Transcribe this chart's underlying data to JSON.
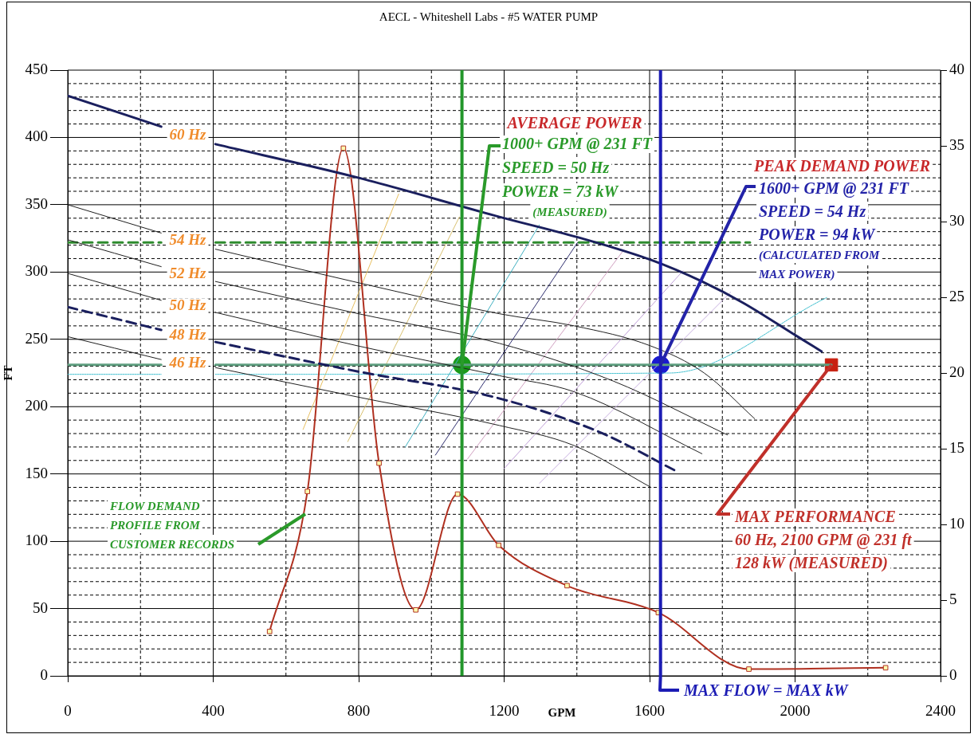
{
  "chart_data": {
    "type": "line",
    "title": "AECL - Whiteshell Labs - #5 WATER PUMP",
    "xlabel": "GPM",
    "ylabel": "FT",
    "xlim": [
      0,
      2400
    ],
    "xticks": [
      0,
      {
        "value": 200,
        "label": null
      },
      400,
      {
        "value": 600,
        "label": null
      },
      800,
      {
        "value": 1000,
        "label": null
      },
      1200,
      {
        "value": 1400,
        "label": null
      },
      1600,
      {
        "value": 1800,
        "label": null
      },
      2000,
      {
        "value": 2200,
        "label": null
      },
      2400
    ],
    "ylim": [
      0,
      450
    ],
    "yticks": [
      0,
      {
        "value": 10,
        "label": null
      },
      {
        "value": 20,
        "label": null
      },
      {
        "value": 30,
        "label": null
      },
      {
        "value": 40,
        "label": null
      },
      50,
      {
        "value": 60,
        "label": null
      },
      {
        "value": 70,
        "label": null
      },
      {
        "value": 80,
        "label": null
      },
      {
        "value": 90,
        "label": null
      },
      100,
      {
        "value": 110,
        "label": null
      },
      {
        "value": 120,
        "label": null
      },
      {
        "value": 130,
        "label": null
      },
      {
        "value": 140,
        "label": null
      },
      150,
      {
        "value": 160,
        "label": null
      },
      {
        "value": 170,
        "label": null
      },
      {
        "value": 180,
        "label": null
      },
      {
        "value": 190,
        "label": null
      },
      200,
      {
        "value": 210,
        "label": null
      },
      {
        "value": 220,
        "label": null
      },
      {
        "value": 230,
        "label": null
      },
      {
        "value": 240,
        "label": null
      },
      250,
      {
        "value": 260,
        "label": null
      },
      {
        "value": 270,
        "label": null
      },
      {
        "value": 280,
        "label": null
      },
      {
        "value": 290,
        "label": null
      },
      300,
      {
        "value": 310,
        "label": null
      },
      {
        "value": 320,
        "label": null
      },
      {
        "value": 330,
        "label": null
      },
      {
        "value": 340,
        "label": null
      },
      350,
      {
        "value": 360,
        "label": null
      },
      {
        "value": 370,
        "label": null
      },
      {
        "value": 380,
        "label": null
      },
      {
        "value": 390,
        "label": null
      },
      400,
      {
        "value": 410,
        "label": null
      },
      {
        "value": 420,
        "label": null
      },
      {
        "value": 430,
        "label": null
      },
      {
        "value": 440,
        "label": null
      },
      450
    ],
    "y2lim": [
      0,
      40
    ],
    "y2ticks": [
      0,
      5,
      10,
      15,
      20,
      25,
      30,
      35,
      40
    ],
    "grid": true,
    "legend": false,
    "series": [
      {
        "name": "60 Hz",
        "color": "#1a1f5e",
        "x": [
          0,
          257,
          330,
          406,
          800,
          1187,
          1400,
          1604,
          1744,
          1858,
          2007,
          2073
        ],
        "values": [
          431,
          408,
          null,
          395,
          370,
          341,
          326,
          309,
          293,
          277,
          252,
          241
        ]
      },
      {
        "name": "54 Hz",
        "color": "#202020",
        "x": [
          0,
          257,
          330,
          406,
          800,
          1187,
          1393,
          1604,
          1750,
          1889
        ],
        "values": [
          350,
          329,
          null,
          317,
          292,
          269,
          260,
          245,
          225,
          191
        ]
      },
      {
        "name": "52 Hz",
        "color": "#202020",
        "x": [
          0,
          257,
          330,
          406,
          800,
          1187,
          1500,
          1814
        ],
        "values": [
          324,
          304,
          null,
          293,
          269,
          247,
          219,
          179
        ]
      },
      {
        "name": "50 Hz",
        "color": "#202020",
        "x": [
          0,
          257,
          330,
          406,
          800,
          1187,
          1393,
          1744
        ],
        "values": [
          299,
          279,
          null,
          270,
          245,
          223,
          211,
          165
        ]
      },
      {
        "name": "48 Hz",
        "color": "#1a1f5e",
        "line_style": "dashed",
        "x": [
          0,
          257,
          330,
          406,
          800,
          1174,
          1463,
          1674
        ],
        "values": [
          274,
          257,
          null,
          248,
          226,
          207,
          181,
          152
        ]
      },
      {
        "name": "46 Hz",
        "color": "#202020",
        "x": [
          0,
          257,
          330,
          406,
          800,
          1187,
          1393,
          1604
        ],
        "values": [
          252,
          235,
          null,
          229,
          207,
          186,
          171,
          140
        ]
      },
      {
        "color": "#b03020",
        "marker": "square",
        "x": [
          555,
          659,
          758,
          856,
          957,
          1072,
          1185,
          1373,
          1624,
          1873,
          2249
        ],
        "values": [
          33,
          137,
          392,
          158,
          49,
          135,
          97,
          67,
          47,
          5,
          6
        ]
      },
      {
        "color": "#5f9f80",
        "x": [
          0,
          257,
          330,
          406,
          2100
        ],
        "values": [
          231,
          231,
          null,
          231,
          231
        ]
      },
      {
        "color": "#2e8b2e",
        "line_style": "dashed",
        "x": [
          0,
          257,
          330,
          406,
          1876
        ],
        "values": [
          322,
          322,
          null,
          322,
          322
        ]
      },
      {
        "color": "#40c0d0",
        "line_style": "dotted",
        "x": [
          0,
          257,
          330,
          406,
          1656,
          2087
        ],
        "values": [
          224,
          224,
          null,
          224,
          225,
          281
        ]
      },
      {
        "color": "#e8c060",
        "x": [
          647,
          910
        ],
        "values": [
          183,
          358
        ]
      },
      {
        "color": "#d8c070",
        "x": [
          770,
          1077
        ],
        "values": [
          174,
          341
        ]
      },
      {
        "color": "#40b0c0",
        "x": [
          928,
          1297
        ],
        "values": [
          170,
          335
        ]
      },
      {
        "color": "#303070",
        "x": [
          1011,
          1402
        ],
        "values": [
          164,
          322
        ]
      },
      {
        "color": "#d0a0c0",
        "x": [
          1099,
          1525
        ],
        "values": [
          161,
          315
        ]
      },
      {
        "color": "#c0a0d8",
        "x": [
          1200,
          1692
        ],
        "values": [
          154,
          301
        ]
      },
      {
        "color": "#c8b0e0",
        "x": [
          1297,
          1823
        ],
        "values": [
          143,
          285
        ]
      },
      {
        "type": "scatter",
        "color": "#1a9a1a",
        "marker": "circle",
        "x": [
          1084
        ],
        "values": [
          231
        ]
      },
      {
        "type": "scatter",
        "color": "#1a1ad0",
        "marker": "circle",
        "x": [
          1630
        ],
        "values": [
          231
        ]
      },
      {
        "type": "scatter",
        "color": "#c82010",
        "marker": "square",
        "x": [
          2100
        ],
        "values": [
          231
        ]
      }
    ],
    "ref_lines": [
      {
        "axis": "x",
        "value": 1084,
        "color": "#22962a"
      },
      {
        "axis": "x",
        "value": 1630,
        "color": "#1c1cb4"
      }
    ],
    "annotations": [
      "AVERAGE POWER",
      {
        "text": "1000+ GPM @ 231 FT\nSPEED = 50 Hz\nPOWER = 73 kW\n(MEASURED)",
        "x": 1084,
        "y": 231
      },
      "PEAK DEMAND POWER",
      {
        "text": "1600+ GPM @ 231 FT\nSPEED = 54 Hz\nPOWER = 94 kW\n(CALCULATED FROM\nMAX POWER)",
        "x": 1630,
        "y": 231
      },
      {
        "text": "MAX PERFORMANCE\n60 Hz, 2100 GPM @ 231 ft\n128 kW (MEASURED)",
        "x": 2100,
        "y": 231
      },
      {
        "text": "MAX FLOW = MAX kW",
        "x": 1630,
        "y": 0
      },
      "FLOW DEMAND\nPROFILE FROM\nCUSTOMER RECORDS"
    ]
  }
}
